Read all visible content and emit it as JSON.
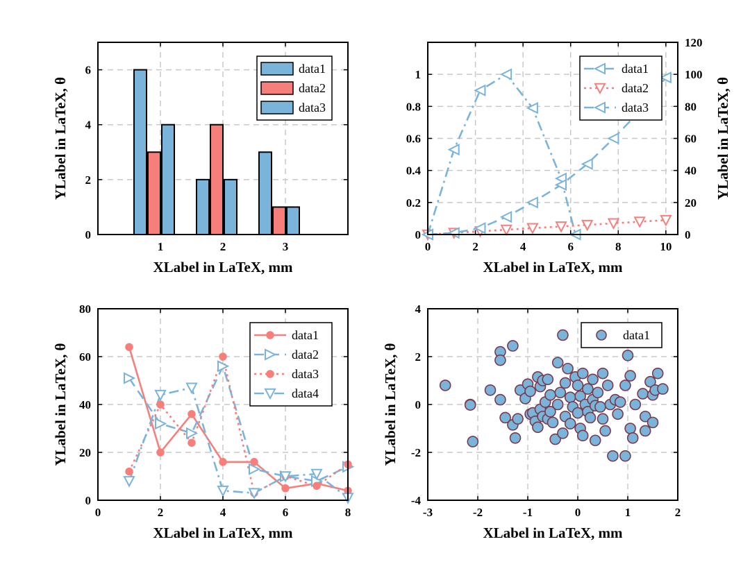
{
  "colors": {
    "blue": "#7AB4DB",
    "red": "#F67F7C",
    "grid": "#C8C8C8",
    "scatter_edge": "#7A3A4A",
    "axis": "#000000"
  },
  "chart_data": [
    {
      "type": "bar",
      "categories": [
        "1",
        "2",
        "3"
      ],
      "series": [
        {
          "name": "data1",
          "color": "blue",
          "values": [
            6,
            2,
            3
          ]
        },
        {
          "name": "data2",
          "color": "red",
          "values": [
            3,
            4,
            1
          ]
        },
        {
          "name": "data3",
          "color": "blue",
          "values": [
            4,
            2,
            1
          ]
        }
      ],
      "xlabel": "XLabel in LaTeX, mm",
      "ylabel": "YLabel in LaTeX, θ",
      "xlim": [
        0,
        4
      ],
      "ylim": [
        0,
        7
      ],
      "yticks": [
        0,
        2,
        4,
        6
      ],
      "xticks": [
        1,
        2,
        3
      ],
      "grid": true,
      "legend": "top-right"
    },
    {
      "type": "line",
      "xlabel": "XLabel in LaTeX, mm",
      "ylabel": "",
      "ylabel_right": "YLabel in LaTeX, θ",
      "xlim": [
        0,
        10.5
      ],
      "ylim": [
        0,
        1.2
      ],
      "ylim_right": [
        0,
        120
      ],
      "xticks": [
        0,
        2,
        4,
        6,
        8,
        10
      ],
      "yticks": [
        0,
        0.2,
        0.4,
        0.6,
        0.8,
        1
      ],
      "ytick_labels": [
        "0",
        "0.2",
        "0.4",
        "0.6",
        "0.8",
        "1"
      ],
      "yticks_right": [
        0,
        20,
        40,
        60,
        80,
        100,
        120
      ],
      "grid": true,
      "legend": "top-right",
      "series": [
        {
          "name": "data1",
          "axis": "left",
          "color": "blue",
          "style": "dashdot",
          "marker": "triangle-left",
          "x": [
            0,
            1.1,
            2.2,
            3.3,
            4.4,
            5.6,
            6.2
          ],
          "y": [
            0,
            0.53,
            0.9,
            1.0,
            0.79,
            0.35,
            0
          ]
        },
        {
          "name": "data2",
          "axis": "right",
          "color": "red",
          "style": "dotted",
          "marker": "triangle-down",
          "x": [
            0,
            1.1,
            2.2,
            3.3,
            4.4,
            5.6,
            6.7,
            7.8,
            8.9,
            10
          ],
          "y": [
            0,
            1,
            2,
            3,
            4,
            5,
            6,
            7,
            8,
            9
          ]
        },
        {
          "name": "data3",
          "axis": "right",
          "color": "blue",
          "style": "dashed",
          "marker": "triangle-left",
          "x": [
            0,
            1.1,
            2.2,
            3.3,
            4.4,
            5.6,
            6.7,
            7.8,
            8.9,
            10
          ],
          "y": [
            0,
            1,
            4,
            11,
            20,
            31,
            44,
            60,
            77,
            98
          ]
        }
      ]
    },
    {
      "type": "line",
      "xlabel": "XLabel in LaTeX, mm",
      "ylabel": "YLabel in LaTeX, θ",
      "xlim": [
        0,
        8
      ],
      "ylim": [
        0,
        80
      ],
      "xticks": [
        0,
        2,
        4,
        6,
        8
      ],
      "yticks": [
        0,
        20,
        40,
        60,
        80
      ],
      "grid": true,
      "legend": "top-right",
      "series": [
        {
          "name": "data1",
          "color": "red",
          "style": "solid",
          "marker": "circle",
          "x": [
            1,
            2,
            3,
            4,
            5,
            6,
            7,
            8
          ],
          "y": [
            64,
            20,
            36,
            16,
            16,
            5,
            7,
            4
          ]
        },
        {
          "name": "data2",
          "color": "blue",
          "style": "dashed",
          "marker": "triangle-right",
          "x": [
            1,
            2,
            3,
            4,
            5,
            6,
            7,
            8
          ],
          "y": [
            51,
            32,
            28,
            56,
            13,
            10,
            8,
            14
          ]
        },
        {
          "name": "data3",
          "color": "red",
          "style": "dotted",
          "marker": "circle",
          "x": [
            1,
            2,
            3,
            4,
            5,
            6,
            7,
            8
          ],
          "y": [
            12,
            40,
            24,
            60,
            3,
            10,
            6,
            15
          ]
        },
        {
          "name": "data4",
          "color": "blue",
          "style": "dashdot",
          "marker": "triangle-down",
          "x": [
            1,
            2,
            3,
            4,
            5,
            6,
            7,
            8
          ],
          "y": [
            8,
            44,
            47,
            4,
            3,
            10,
            11,
            1
          ]
        }
      ]
    },
    {
      "type": "scatter",
      "xlabel": "XLabel in LaTeX, mm",
      "ylabel": "YLabel in LaTeX, θ",
      "xlim": [
        -3,
        2
      ],
      "ylim": [
        -4,
        4
      ],
      "xticks": [
        -3,
        -2,
        -1,
        0,
        1,
        2
      ],
      "yticks": [
        -4,
        -2,
        0,
        2,
        4
      ],
      "grid": true,
      "legend": "top-right",
      "series": [
        {
          "name": "data1",
          "color": "blue",
          "edge": "scatter_edge",
          "points": [
            [
              -2.65,
              0.8
            ],
            [
              -2.15,
              0.0
            ],
            [
              -2.1,
              -1.55
            ],
            [
              -1.75,
              0.6
            ],
            [
              -1.55,
              2.2
            ],
            [
              -1.55,
              1.85
            ],
            [
              -1.55,
              0.2
            ],
            [
              -1.45,
              -0.55
            ],
            [
              -1.3,
              2.45
            ],
            [
              -1.3,
              -0.85
            ],
            [
              -1.25,
              -1.4
            ],
            [
              -1.2,
              -0.6
            ],
            [
              -1.15,
              0.6
            ],
            [
              -1.05,
              0.25
            ],
            [
              -1.0,
              0.85
            ],
            [
              -0.95,
              -0.4
            ],
            [
              -0.95,
              0.55
            ],
            [
              -0.9,
              -0.35
            ],
            [
              -0.85,
              -0.7
            ],
            [
              -0.8,
              1.15
            ],
            [
              -0.8,
              -0.95
            ],
            [
              -0.75,
              0.75
            ],
            [
              -0.75,
              -0.2
            ],
            [
              -0.7,
              1.0
            ],
            [
              -0.7,
              -0.5
            ],
            [
              -0.65,
              0.1
            ],
            [
              -0.6,
              -0.6
            ],
            [
              -0.6,
              1.05
            ],
            [
              -0.55,
              -0.3
            ],
            [
              -0.55,
              0.4
            ],
            [
              -0.5,
              -0.75
            ],
            [
              -0.45,
              -1.45
            ],
            [
              -0.4,
              0.0
            ],
            [
              -0.4,
              1.75
            ],
            [
              -0.35,
              0.5
            ],
            [
              -0.3,
              2.9
            ],
            [
              -0.3,
              -1.2
            ],
            [
              -0.25,
              0.9
            ],
            [
              -0.25,
              -0.5
            ],
            [
              -0.2,
              1.5
            ],
            [
              -0.15,
              -0.8
            ],
            [
              -0.15,
              0.3
            ],
            [
              -0.1,
              -0.1
            ],
            [
              -0.05,
              1.15
            ],
            [
              0.0,
              0.8
            ],
            [
              0.0,
              -0.35
            ],
            [
              0.05,
              -1.0
            ],
            [
              0.05,
              0.35
            ],
            [
              0.1,
              1.3
            ],
            [
              0.1,
              -1.3
            ],
            [
              0.15,
              0.0
            ],
            [
              0.2,
              0.65
            ],
            [
              0.2,
              -0.3
            ],
            [
              0.25,
              -0.55
            ],
            [
              0.3,
              0.2
            ],
            [
              0.3,
              1.05
            ],
            [
              0.35,
              -0.05
            ],
            [
              0.35,
              -1.5
            ],
            [
              0.4,
              0.5
            ],
            [
              0.45,
              -0.1
            ],
            [
              0.5,
              1.3
            ],
            [
              0.5,
              -0.6
            ],
            [
              0.55,
              -1.1
            ],
            [
              0.6,
              0.8
            ],
            [
              0.65,
              0.0
            ],
            [
              0.7,
              -2.15
            ],
            [
              0.75,
              0.2
            ],
            [
              0.8,
              -0.4
            ],
            [
              0.85,
              0.1
            ],
            [
              0.95,
              0.8
            ],
            [
              0.95,
              -2.15
            ],
            [
              1.0,
              2.05
            ],
            [
              1.05,
              -1.0
            ],
            [
              1.05,
              1.2
            ],
            [
              1.1,
              -1.4
            ],
            [
              1.15,
              0.0
            ],
            [
              1.3,
              0.45
            ],
            [
              1.35,
              -0.5
            ],
            [
              1.35,
              -1.1
            ],
            [
              1.45,
              0.95
            ],
            [
              1.5,
              -0.75
            ],
            [
              1.5,
              0.4
            ],
            [
              1.55,
              0.6
            ],
            [
              1.6,
              1.3
            ],
            [
              1.7,
              0.65
            ],
            [
              -2.15,
              -0.02
            ]
          ]
        }
      ]
    }
  ]
}
